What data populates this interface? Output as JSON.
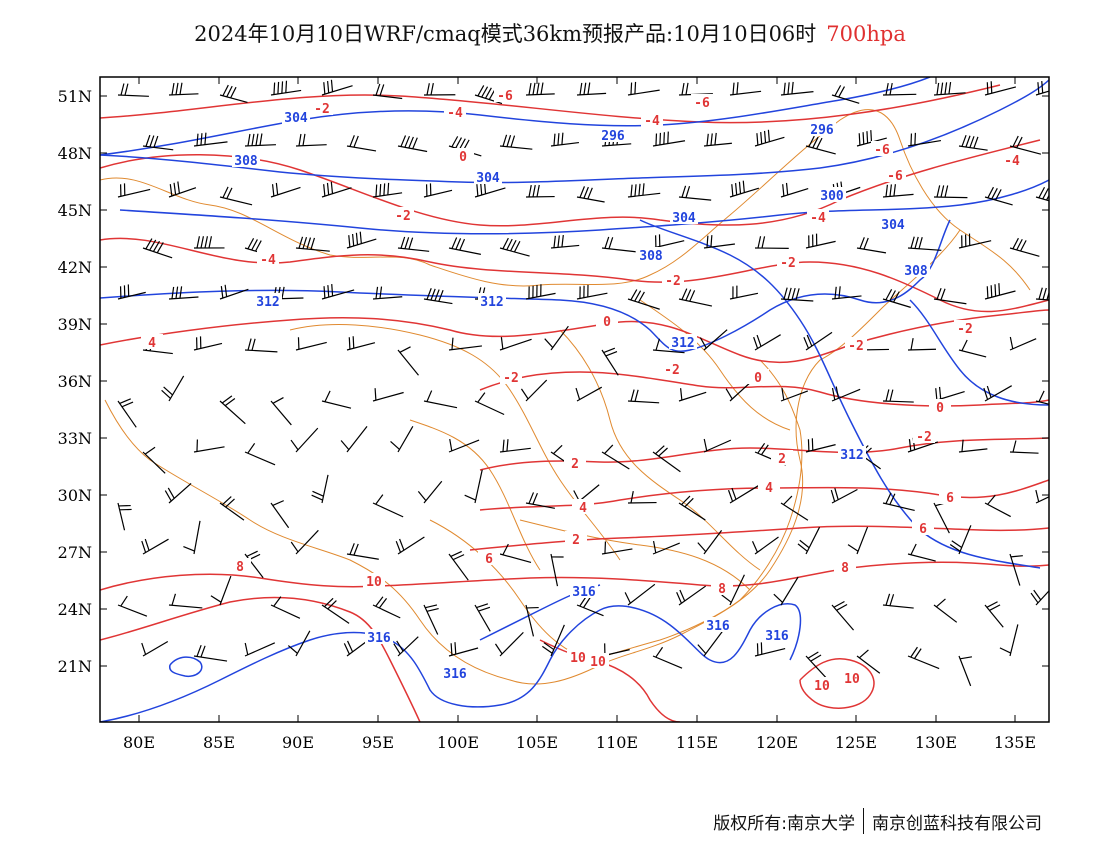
{
  "title": {
    "text": "2024年10月10日WRF/cmaq模式36km预报产品:10月10日06时",
    "level": "700hpa"
  },
  "colors": {
    "temperature_contour": "#e03535",
    "height_contour": "#2244dd",
    "border": "#e08a30",
    "wind_barb": "#000000",
    "level_label": "#e03030"
  },
  "axes": {
    "lon_ticks": [
      "80E",
      "85E",
      "90E",
      "95E",
      "100E",
      "105E",
      "110E",
      "115E",
      "120E",
      "125E",
      "130E",
      "135E"
    ],
    "lat_ticks": [
      "21N",
      "24N",
      "27N",
      "30N",
      "33N",
      "36N",
      "39N",
      "42N",
      "45N",
      "48N",
      "51N"
    ]
  },
  "height_labels": [
    "304",
    "308",
    "296",
    "296",
    "304",
    "300",
    "304",
    "304",
    "308",
    "308",
    "312",
    "312",
    "312",
    "312",
    "316",
    "316",
    "316",
    "316",
    "316"
  ],
  "temperature_labels": [
    "-2",
    "-4",
    "-6",
    "-6",
    "-4",
    "-6",
    "-6",
    "-4",
    "0",
    "-2",
    "-4",
    "-4",
    "-2",
    "0",
    "-2",
    "-2",
    "-2",
    "-2",
    "-2",
    "0",
    "-2",
    "0",
    "2",
    "4",
    "2",
    "4",
    "6",
    "6",
    "6",
    "8",
    "8",
    "8",
    "10",
    "10",
    "10",
    "10",
    "10",
    "4",
    "2"
  ],
  "footer": {
    "copyright": "版权所有:南京大学",
    "company": "南京创蓝科技有限公司"
  }
}
